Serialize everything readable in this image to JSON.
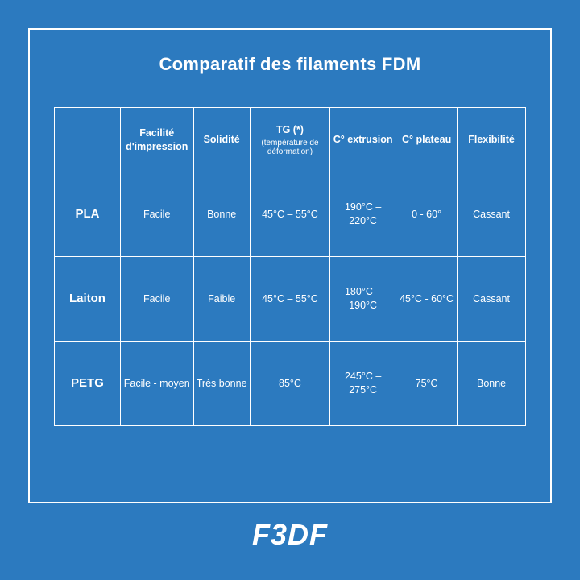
{
  "title": "Comparatif des filaments FDM",
  "table": {
    "columns": [
      {
        "label": "",
        "sub": ""
      },
      {
        "label": "Facilité d'impression",
        "sub": ""
      },
      {
        "label": "Solidité",
        "sub": ""
      },
      {
        "label": "TG (*)",
        "sub": "(température de déformation)"
      },
      {
        "label": "C° extrusion",
        "sub": ""
      },
      {
        "label": "C° plateau",
        "sub": ""
      },
      {
        "label": "Flexibilité",
        "sub": ""
      }
    ],
    "rows": [
      {
        "name": "PLA",
        "cells": [
          "Facile",
          "Bonne",
          "45°C – 55°C",
          "190°C – 220°C",
          "0 - 60°",
          "Cassant"
        ]
      },
      {
        "name": "Laiton",
        "cells": [
          "Facile",
          "Faible",
          "45°C – 55°C",
          "180°C – 190°C",
          "45°C - 60°C",
          "Cassant"
        ]
      },
      {
        "name": "PETG",
        "cells": [
          "Facile - moyen",
          "Très bonne",
          "85°C",
          "245°C – 275°C",
          "75°C",
          "Bonne"
        ]
      }
    ]
  },
  "colors": {
    "background": "#2c7abf",
    "border": "#ffffff",
    "text": "#ffffff"
  },
  "logo": "F3DF"
}
